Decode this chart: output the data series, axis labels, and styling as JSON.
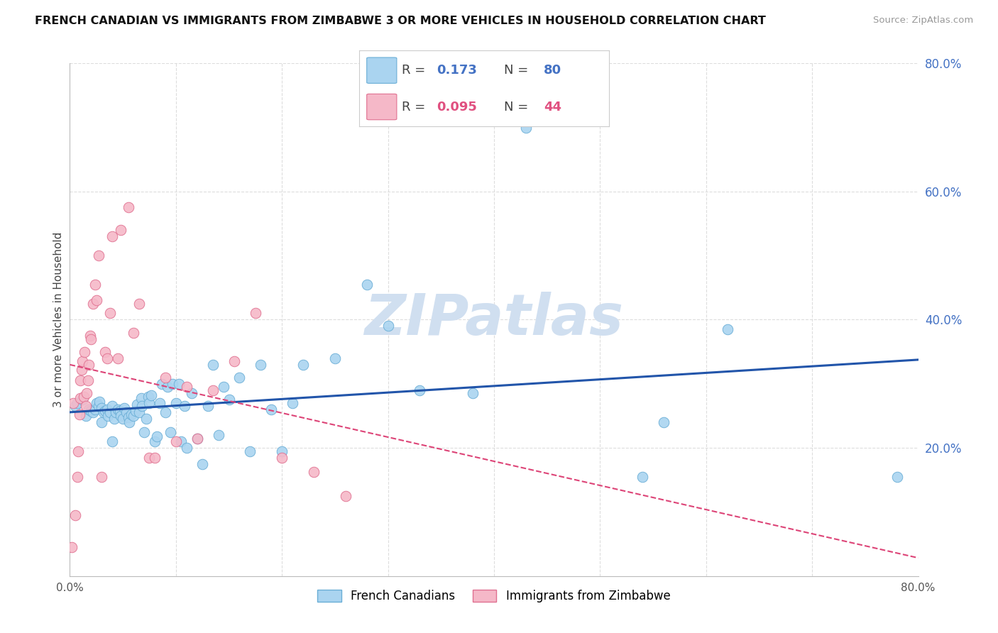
{
  "title": "FRENCH CANADIAN VS IMMIGRANTS FROM ZIMBABWE 3 OR MORE VEHICLES IN HOUSEHOLD CORRELATION CHART",
  "source": "Source: ZipAtlas.com",
  "ylabel": "3 or more Vehicles in Household",
  "x_min": 0.0,
  "x_max": 0.8,
  "y_min": 0.0,
  "y_max": 0.8,
  "y_ticks_right": [
    0.0,
    0.2,
    0.4,
    0.6,
    0.8
  ],
  "y_tick_labels_right": [
    "",
    "20.0%",
    "40.0%",
    "60.0%",
    "80.0%"
  ],
  "grid_color": "#dddddd",
  "background_color": "#ffffff",
  "french_canadians_color": "#aad4f0",
  "french_canadians_edge": "#6aaed6",
  "immigrants_color": "#f5b8c8",
  "immigrants_edge": "#e07090",
  "trend_blue_color": "#2255aa",
  "trend_pink_color": "#dd4477",
  "watermark_color": "#d0dff0",
  "legend_R_blue": "0.173",
  "legend_N_blue": "80",
  "legend_R_pink": "0.095",
  "legend_N_pink": "44",
  "blue_label": "French Canadians",
  "pink_label": "Immigrants from Zimbabwe",
  "french_canadians_x": [
    0.005,
    0.007,
    0.012,
    0.015,
    0.018,
    0.02,
    0.022,
    0.024,
    0.025,
    0.027,
    0.028,
    0.03,
    0.03,
    0.032,
    0.033,
    0.035,
    0.036,
    0.038,
    0.04,
    0.04,
    0.042,
    0.043,
    0.045,
    0.047,
    0.048,
    0.05,
    0.051,
    0.053,
    0.055,
    0.056,
    0.058,
    0.06,
    0.062,
    0.063,
    0.065,
    0.067,
    0.068,
    0.07,
    0.072,
    0.074,
    0.075,
    0.077,
    0.08,
    0.082,
    0.085,
    0.087,
    0.09,
    0.092,
    0.095,
    0.097,
    0.1,
    0.103,
    0.105,
    0.108,
    0.11,
    0.115,
    0.12,
    0.125,
    0.13,
    0.135,
    0.14,
    0.145,
    0.15,
    0.16,
    0.17,
    0.18,
    0.19,
    0.2,
    0.21,
    0.22,
    0.25,
    0.28,
    0.3,
    0.33,
    0.38,
    0.43,
    0.54,
    0.56,
    0.62,
    0.78
  ],
  "french_canadians_y": [
    0.265,
    0.27,
    0.275,
    0.25,
    0.26,
    0.258,
    0.255,
    0.26,
    0.27,
    0.265,
    0.272,
    0.24,
    0.262,
    0.255,
    0.258,
    0.26,
    0.25,
    0.255,
    0.21,
    0.265,
    0.245,
    0.255,
    0.26,
    0.258,
    0.25,
    0.245,
    0.262,
    0.255,
    0.248,
    0.24,
    0.252,
    0.25,
    0.258,
    0.268,
    0.255,
    0.278,
    0.265,
    0.225,
    0.245,
    0.28,
    0.27,
    0.282,
    0.21,
    0.218,
    0.27,
    0.3,
    0.255,
    0.295,
    0.225,
    0.3,
    0.27,
    0.3,
    0.21,
    0.265,
    0.2,
    0.285,
    0.215,
    0.175,
    0.265,
    0.33,
    0.22,
    0.295,
    0.275,
    0.31,
    0.195,
    0.33,
    0.26,
    0.195,
    0.27,
    0.33,
    0.34,
    0.455,
    0.39,
    0.29,
    0.285,
    0.7,
    0.155,
    0.24,
    0.385,
    0.155
  ],
  "immigrants_x": [
    0.002,
    0.003,
    0.005,
    0.007,
    0.008,
    0.009,
    0.01,
    0.01,
    0.011,
    0.012,
    0.013,
    0.014,
    0.015,
    0.016,
    0.017,
    0.018,
    0.019,
    0.02,
    0.022,
    0.024,
    0.025,
    0.027,
    0.03,
    0.033,
    0.035,
    0.038,
    0.04,
    0.045,
    0.048,
    0.055,
    0.06,
    0.065,
    0.075,
    0.08,
    0.09,
    0.1,
    0.11,
    0.12,
    0.135,
    0.155,
    0.175,
    0.2,
    0.23,
    0.26
  ],
  "immigrants_y": [
    0.045,
    0.27,
    0.095,
    0.155,
    0.195,
    0.252,
    0.278,
    0.305,
    0.322,
    0.335,
    0.28,
    0.35,
    0.265,
    0.285,
    0.305,
    0.33,
    0.375,
    0.37,
    0.425,
    0.455,
    0.43,
    0.5,
    0.155,
    0.35,
    0.34,
    0.41,
    0.53,
    0.34,
    0.54,
    0.575,
    0.38,
    0.425,
    0.185,
    0.185,
    0.31,
    0.21,
    0.295,
    0.215,
    0.29,
    0.335,
    0.41,
    0.185,
    0.162,
    0.125
  ]
}
